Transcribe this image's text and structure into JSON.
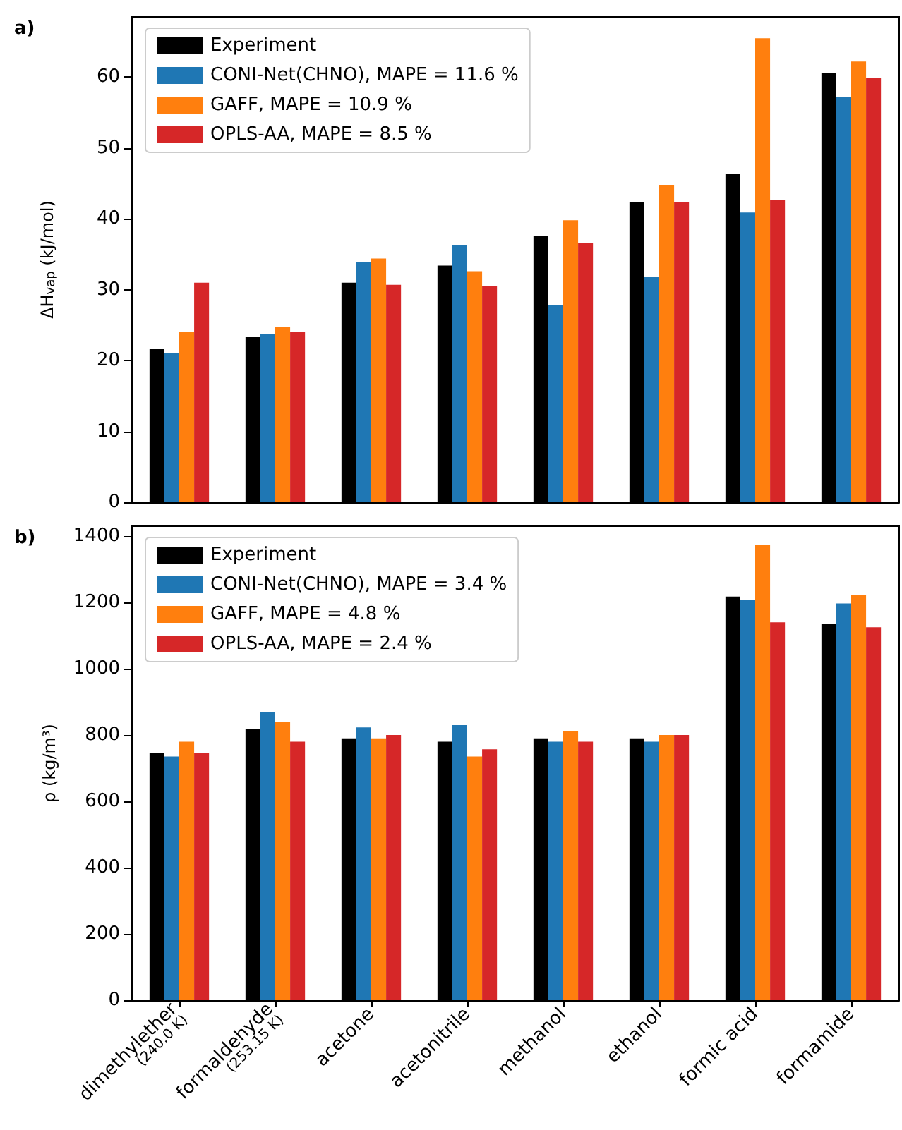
{
  "chart_data": [
    {
      "type": "bar",
      "annotations": [
        "a)"
      ],
      "ylabel": "ΔH$_{vap}$ (kJ/mol)",
      "categories": [
        null,
        null,
        null,
        null,
        null,
        null,
        null,
        null
      ],
      "series": [
        {
          "name": "Experiment",
          "color": "#000000",
          "values": [
            21.6,
            23.3,
            31,
            33.4,
            37.6,
            42.4,
            46.4,
            60.6
          ]
        },
        {
          "name": "CONI-Net(CHNO), MAPE = 11.6 %",
          "color": "#1f77b4",
          "values": [
            21.1,
            23.8,
            33.9,
            36.3,
            27.8,
            31.8,
            40.9,
            57.2
          ]
        },
        {
          "name": "GAFF, MAPE = 10.9 %",
          "color": "#ff7f0e",
          "values": [
            24.1,
            24.8,
            34.4,
            32.6,
            39.8,
            44.8,
            65.5,
            62.2
          ]
        },
        {
          "name": "OPLS-AA, MAPE = 8.5 %",
          "color": "#d62728",
          "values": [
            31,
            24.1,
            30.7,
            30.5,
            36.6,
            42.4,
            42.7,
            59.9
          ]
        }
      ],
      "ylim": [
        0,
        68.5
      ],
      "yticks": [
        0,
        10,
        20,
        30,
        40,
        50,
        60
      ],
      "grid": false,
      "legend": "top left",
      "tick_labels": "y"
    },
    {
      "type": "bar",
      "annotations": [
        "b)"
      ],
      "ylabel": "ρ (kg/m³)",
      "categories": [
        "dimethylether\n(240.0 K)",
        "formaldehyde\n(253.15 K)",
        "acetone",
        "acetonitrile",
        "methanol",
        "ethanol",
        "formic acid",
        "formamide"
      ],
      "series": [
        {
          "name": "Experiment",
          "color": "#000000",
          "values": [
            745,
            818,
            790,
            780,
            790,
            790,
            1218,
            1135
          ]
        },
        {
          "name": "CONI-Net(CHNO), MAPE = 3.4 %",
          "color": "#1f77b4",
          "values": [
            735,
            868,
            823,
            830,
            780,
            780,
            1207,
            1197
          ]
        },
        {
          "name": "GAFF, MAPE = 4.8 %",
          "color": "#ff7f0e",
          "values": [
            780,
            840,
            790,
            735,
            812,
            800,
            1373,
            1222
          ]
        },
        {
          "name": "OPLS-AA, MAPE = 2.4 %",
          "color": "#d62728",
          "values": [
            745,
            780,
            800,
            757,
            780,
            800,
            1140,
            1125
          ]
        }
      ],
      "ylim": [
        0,
        1430
      ],
      "yticks": [
        0,
        200,
        400,
        600,
        800,
        1000,
        1200,
        1400
      ],
      "grid": false,
      "legend": "top left"
    }
  ]
}
